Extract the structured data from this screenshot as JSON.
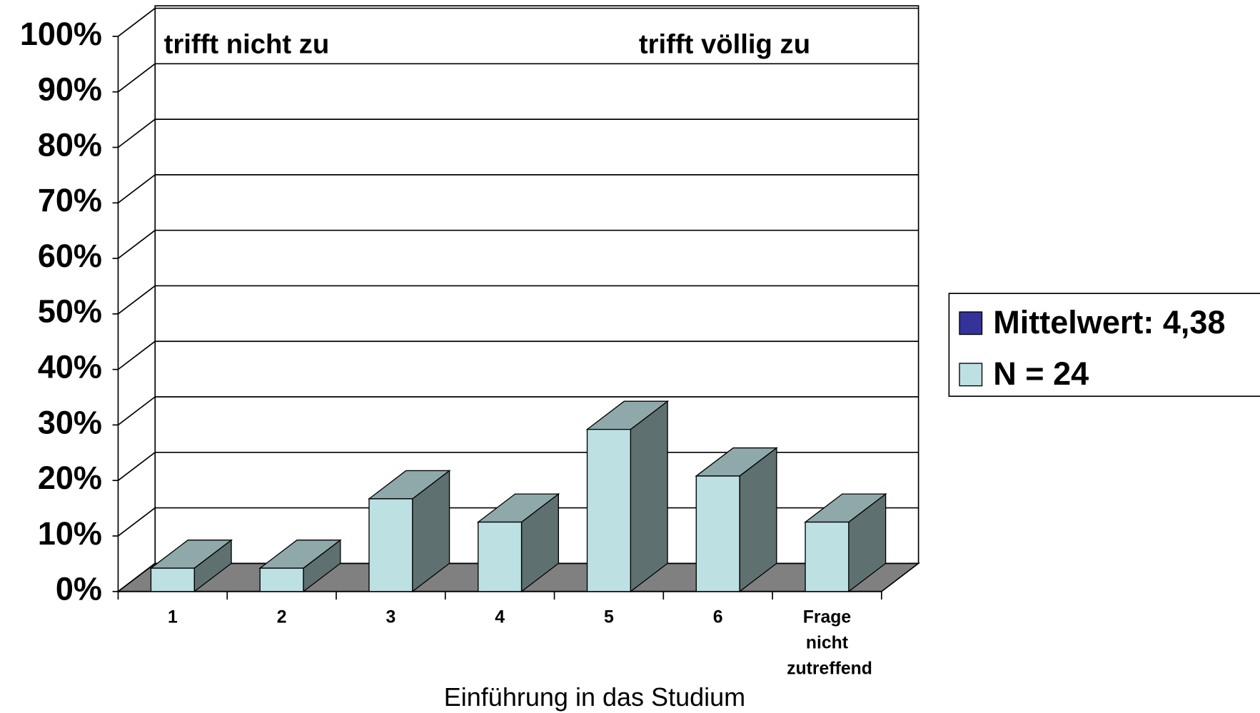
{
  "chart_data": {
    "type": "bar3d",
    "annotations": [
      "trifft nicht zu",
      "trifft völlig zu"
    ],
    "x_label": "Einführung in das Studium",
    "categories": [
      "1",
      "2",
      "3",
      "4",
      "5",
      "6",
      "Frage nicht zutreffend"
    ],
    "series": [
      {
        "name": "Mittelwert: 4,38",
        "color": "#333399",
        "values": [
          null,
          null,
          null,
          null,
          null,
          null,
          null
        ]
      },
      {
        "name": "N = 24",
        "color": "#bde0e3",
        "values": [
          4.2,
          4.2,
          16.7,
          12.5,
          29.2,
          20.8,
          12.5
        ]
      }
    ],
    "ylim": [
      0,
      100
    ],
    "yticks": [
      {
        "value": 0,
        "label": "0%"
      },
      {
        "value": 10,
        "label": "10%"
      },
      {
        "value": 20,
        "label": "20%"
      },
      {
        "value": 30,
        "label": "30%"
      },
      {
        "value": 40,
        "label": "40%"
      },
      {
        "value": 50,
        "label": "50%"
      },
      {
        "value": 60,
        "label": "60%"
      },
      {
        "value": 70,
        "label": "70%"
      },
      {
        "value": 80,
        "label": "80%"
      },
      {
        "value": 90,
        "label": "90%"
      },
      {
        "value": 100,
        "label": "100%"
      }
    ],
    "grid": true
  }
}
